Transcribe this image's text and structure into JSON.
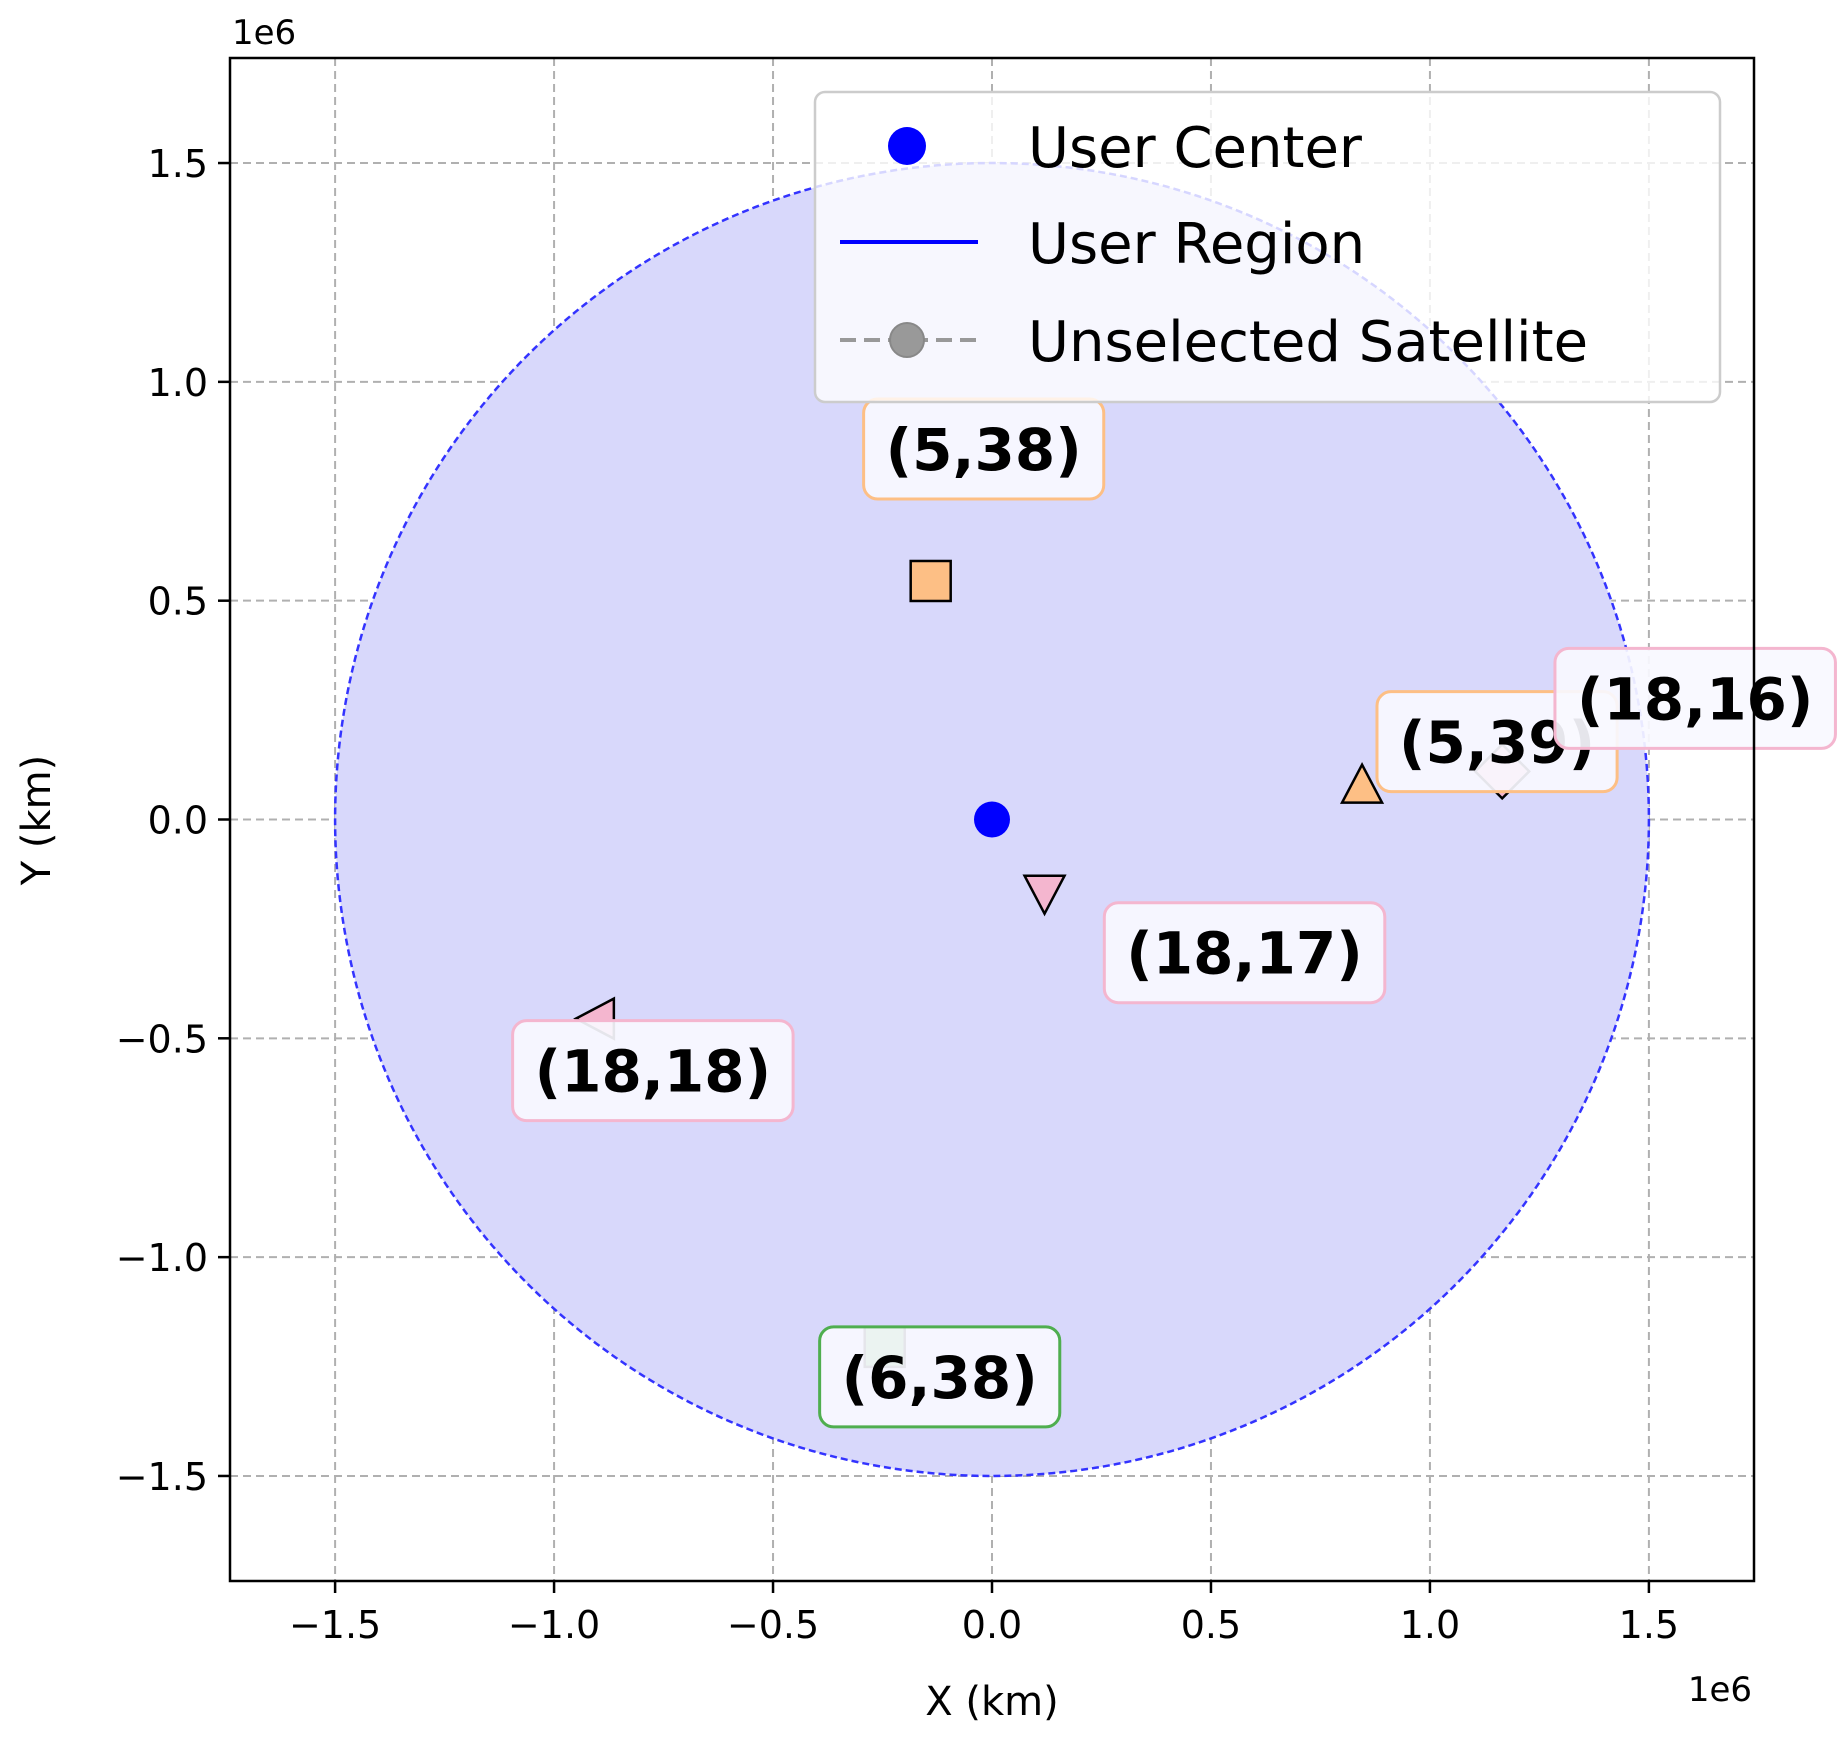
{
  "chart_data": {
    "type": "scatter",
    "xlabel": "X (km)",
    "ylabel": "Y (km)",
    "x_offset_label": "1e6",
    "y_offset_label": "1e6",
    "xlim": [
      -1.74,
      1.74
    ],
    "ylim": [
      -1.74,
      1.74
    ],
    "x_ticks": [
      -1.5,
      -1.0,
      -0.5,
      0.0,
      0.5,
      1.0,
      1.5
    ],
    "y_ticks": [
      -1.5,
      -1.0,
      -0.5,
      0.0,
      0.5,
      1.0,
      1.5
    ],
    "x_tick_labels": [
      "−1.5",
      "−1.0",
      "−0.5",
      "0.0",
      "0.5",
      "1.0",
      "1.5"
    ],
    "y_tick_labels": [
      "−1.5",
      "−1.0",
      "−0.5",
      "0.0",
      "0.5",
      "1.0",
      "1.5"
    ],
    "grid": true,
    "legend_position": "top-right",
    "legend": [
      {
        "label": "User Center",
        "marker": "circle",
        "color": "#0000ff"
      },
      {
        "label": "User Region",
        "marker": "line",
        "color": "#0000ff"
      },
      {
        "label": "Unselected Satellite",
        "marker": "dashed-circle",
        "color": "#999999"
      }
    ],
    "user_center": {
      "x": 0.0,
      "y": 0.0,
      "color": "#0000ff"
    },
    "user_region": {
      "center_x": 0.0,
      "center_y": 0.0,
      "radius": 1.5,
      "fill_color": "#d8d8fb",
      "edge_color": "#3333ff"
    },
    "satellites": [
      {
        "label": "(5,38)",
        "x": -0.14,
        "y": 0.545,
        "marker": "square",
        "color": "#fdbf85",
        "box_edge": "#fdbf85"
      },
      {
        "label": "(5,39)",
        "x": 0.845,
        "y": 0.075,
        "marker": "triangle-up",
        "color": "#fdbf85",
        "box_edge": "#fdbf85"
      },
      {
        "label": "(18,16)",
        "x": 1.165,
        "y": 0.11,
        "marker": "diamond",
        "color": "#f4b6cf",
        "box_edge": "#f4b6cf"
      },
      {
        "label": "(18,17)",
        "x": 0.12,
        "y": -0.165,
        "marker": "triangle-down",
        "color": "#f4b6cf",
        "box_edge": "#f4b6cf"
      },
      {
        "label": "(18,18)",
        "x": -0.9,
        "y": -0.455,
        "marker": "triangle-left",
        "color": "#f4b6cf",
        "box_edge": "#f4b6cf"
      },
      {
        "label": "(6,38)",
        "x": -0.245,
        "y": -1.205,
        "marker": "square",
        "color": "#4fae4f",
        "box_edge": "#4fae4f"
      }
    ]
  }
}
